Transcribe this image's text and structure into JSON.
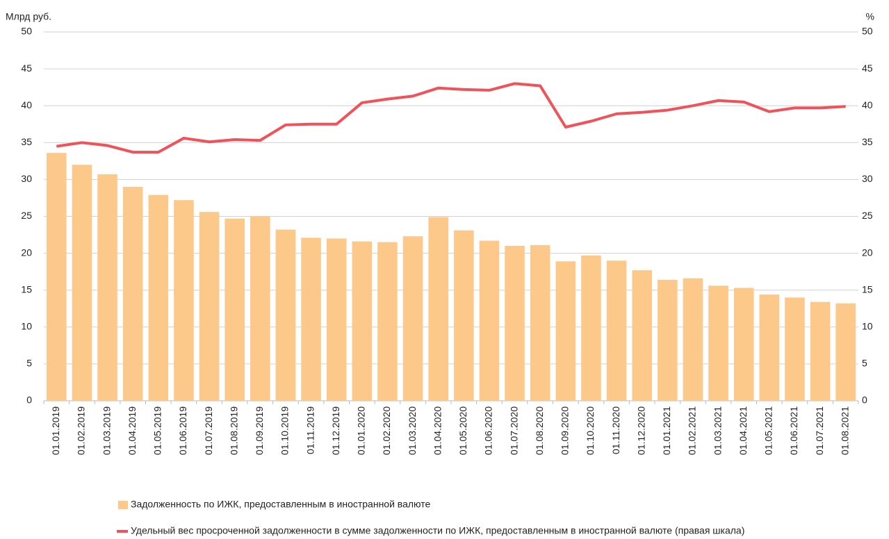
{
  "chart_data": {
    "type": "bar",
    "y_label": "Млрд руб.",
    "y2_label": "%",
    "categories": [
      "01.01.2019",
      "01.02.2019",
      "01.03.2019",
      "01.04.2019",
      "01.05.2019",
      "01.06.2019",
      "01.07.2019",
      "01.08.2019",
      "01.09.2019",
      "01.10.2019",
      "01.11.2019",
      "01.12.2019",
      "01.01.2020",
      "01.02.2020",
      "01.03.2020",
      "01.04.2020",
      "01.05.2020",
      "01.06.2020",
      "01.07.2020",
      "01.08.2020",
      "01.09.2020",
      "01.10.2020",
      "01.11.2020",
      "01.12.2020",
      "01.01.2021",
      "01.02.2021",
      "01.03.2021",
      "01.04.2021",
      "01.05.2021",
      "01.06.2021",
      "01.07.2021",
      "01.08.2021"
    ],
    "series": [
      {
        "name": "Задолженность по ИЖК, предоставленным в иностранной валюте",
        "type": "bar",
        "color": "#fdc98a",
        "values": [
          33.6,
          32.0,
          30.7,
          29.0,
          27.9,
          27.2,
          25.6,
          24.7,
          25.0,
          23.2,
          22.1,
          22.0,
          21.6,
          21.5,
          22.3,
          24.9,
          23.1,
          21.7,
          21.0,
          21.1,
          18.9,
          19.7,
          19.0,
          17.7,
          16.4,
          16.6,
          15.6,
          15.3,
          14.4,
          14.0,
          13.4,
          13.2
        ]
      },
      {
        "name": "Удельный вес просроченной задолженности в сумме задолженности по ИЖК, предоставленным в иностранной валюте (правая шкала)",
        "type": "line",
        "axis": "y2",
        "color": "#f0525a",
        "values": [
          34.5,
          35.0,
          34.6,
          33.7,
          33.7,
          35.6,
          35.1,
          35.4,
          35.3,
          37.4,
          37.5,
          37.5,
          40.4,
          40.9,
          41.3,
          42.4,
          42.2,
          42.1,
          43.0,
          42.7,
          37.1,
          37.9,
          38.9,
          39.1,
          39.4,
          40.0,
          40.7,
          40.5,
          39.2,
          39.7,
          39.7,
          39.9
        ]
      }
    ],
    "ylim": [
      0,
      50
    ],
    "yticks": [
      0,
      5,
      10,
      15,
      20,
      25,
      30,
      35,
      40,
      45,
      50
    ],
    "y2lim": [
      0,
      50
    ],
    "y2ticks": [
      0,
      5,
      10,
      15,
      20,
      25,
      30,
      35,
      40,
      45,
      50
    ],
    "grid": true
  }
}
